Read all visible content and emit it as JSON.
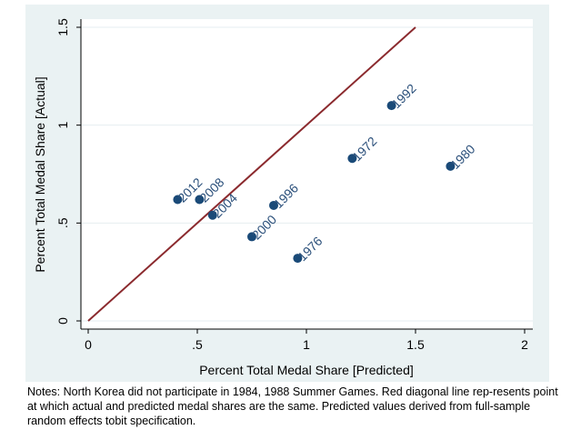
{
  "chart_data": {
    "type": "scatter",
    "title": "",
    "xlabel": "Percent Total Medal Share [Predicted]",
    "ylabel": "Percent Total Medal Share [Actual]",
    "xlim": [
      0,
      2
    ],
    "ylim": [
      0,
      1.5
    ],
    "xticks": [
      {
        "v": 0,
        "label": "0"
      },
      {
        "v": 0.5,
        "label": ".5"
      },
      {
        "v": 1,
        "label": "1"
      },
      {
        "v": 1.5,
        "label": "1.5"
      },
      {
        "v": 2,
        "label": "2"
      }
    ],
    "yticks": [
      {
        "v": 0,
        "label": "0"
      },
      {
        "v": 0.5,
        "label": ".5"
      },
      {
        "v": 1,
        "label": "1"
      },
      {
        "v": 1.5,
        "label": "1.5"
      }
    ],
    "grid": "horizontal",
    "points": [
      {
        "label": "2012",
        "x": 0.41,
        "y": 0.62
      },
      {
        "label": "2008",
        "x": 0.51,
        "y": 0.62
      },
      {
        "label": "2004",
        "x": 0.57,
        "y": 0.54
      },
      {
        "label": "2000",
        "x": 0.75,
        "y": 0.43
      },
      {
        "label": "1996",
        "x": 0.85,
        "y": 0.59
      },
      {
        "label": "1976",
        "x": 0.96,
        "y": 0.32
      },
      {
        "label": "1972",
        "x": 1.21,
        "y": 0.83
      },
      {
        "label": "1992",
        "x": 1.39,
        "y": 1.1
      },
      {
        "label": "1980",
        "x": 1.66,
        "y": 0.79
      }
    ],
    "reference_line": {
      "from": [
        0,
        0
      ],
      "to": [
        1.5,
        1.5
      ],
      "color": "#8b2a2e"
    },
    "point_color": "#1a4a78",
    "label_color": "#2a4f7a",
    "background_color": "#eaf2f3"
  },
  "notes": "Notes: North Korea did not participate in 1984,  1988 Summer Games. Red diagonal line rep-resents point at which actual and predicted medal shares are the same. Predicted values derived from full-sample random effects tobit specification."
}
